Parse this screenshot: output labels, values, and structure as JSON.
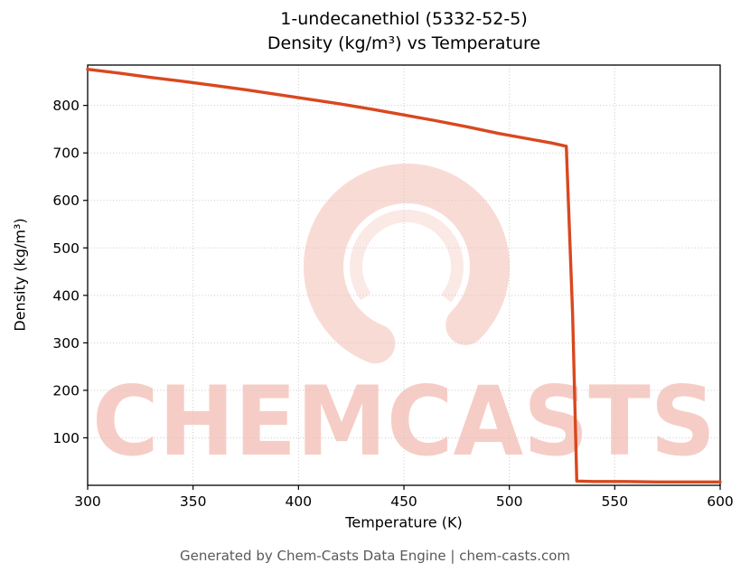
{
  "title": {
    "line1": "1-undecanethiol (5332-52-5)",
    "line2": "Density (kg/m³) vs Temperature"
  },
  "footer": "Generated by Chem-Casts Data Engine | chem-casts.com",
  "watermark": {
    "text": "CHEMCASTS",
    "color": "#e25b41",
    "text_opacity": 0.3,
    "logo_opacity": 0.22
  },
  "chart_data": {
    "type": "line",
    "title": "1-undecanethiol (5332-52-5) Density (kg/m³) vs Temperature",
    "xlabel": "Temperature (K)",
    "ylabel": "Density (kg/m³)",
    "xlim": [
      300,
      600
    ],
    "ylim": [
      0,
      885
    ],
    "x_ticks": [
      300,
      350,
      400,
      450,
      500,
      550,
      600
    ],
    "y_ticks": [
      100,
      200,
      300,
      400,
      500,
      600,
      700,
      800
    ],
    "grid": true,
    "grid_color": "#c9c9c9",
    "line_color": "#d9481f",
    "series": [
      {
        "name": "density",
        "points": [
          [
            300,
            876
          ],
          [
            315,
            868
          ],
          [
            330,
            859
          ],
          [
            345,
            851
          ],
          [
            360,
            842
          ],
          [
            375,
            833
          ],
          [
            390,
            823
          ],
          [
            405,
            813
          ],
          [
            420,
            803
          ],
          [
            435,
            792
          ],
          [
            450,
            780
          ],
          [
            465,
            768
          ],
          [
            480,
            755
          ],
          [
            495,
            741
          ],
          [
            510,
            729
          ],
          [
            520,
            721
          ],
          [
            526,
            715
          ],
          [
            527,
            714
          ],
          [
            530,
            360
          ],
          [
            532,
            9
          ],
          [
            540,
            8
          ],
          [
            555,
            8
          ],
          [
            570,
            7
          ],
          [
            585,
            7
          ],
          [
            600,
            7
          ]
        ]
      }
    ]
  }
}
